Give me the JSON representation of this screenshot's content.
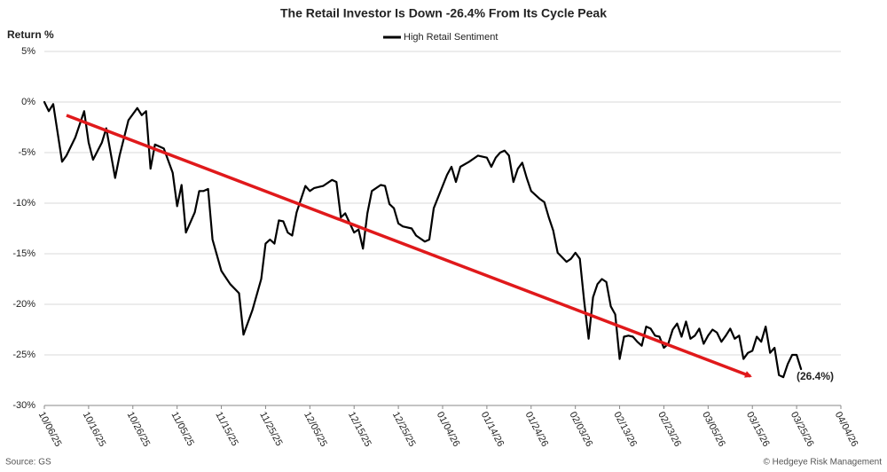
{
  "chart_data": {
    "type": "line",
    "title": "The Retail Investor Is Down -26.4% From Its Cycle Peak",
    "y_label": "Return %",
    "annotation": "(26.4%)",
    "source": "Source: GS",
    "credit": "© Hedgeye Risk Management",
    "x": [
      "10/06/25",
      "10/07/25",
      "10/08/25",
      "10/10/25",
      "10/11/25",
      "10/13/25",
      "10/15/25",
      "10/16/25",
      "10/17/25",
      "10/19/25",
      "10/20/25",
      "10/22/25",
      "10/23/25",
      "10/25/25",
      "10/27/25",
      "10/28/25",
      "10/29/25",
      "10/30/25",
      "10/31/25",
      "11/02/25",
      "11/04/25",
      "11/05/25",
      "11/06/25",
      "11/07/25",
      "11/09/25",
      "11/10/25",
      "11/11/25",
      "11/12/25",
      "11/13/25",
      "11/15/25",
      "11/17/25",
      "11/19/25",
      "11/20/25",
      "11/22/25",
      "11/24/25",
      "11/25/25",
      "11/26/25",
      "11/27/25",
      "11/28/25",
      "11/29/25",
      "11/30/25",
      "12/01/25",
      "12/02/25",
      "12/04/25",
      "12/05/25",
      "12/06/25",
      "12/08/25",
      "12/10/25",
      "12/11/25",
      "12/12/25",
      "12/13/25",
      "12/15/25",
      "12/16/25",
      "12/17/25",
      "12/18/25",
      "12/19/25",
      "12/21/25",
      "12/22/25",
      "12/23/25",
      "12/24/25",
      "12/25/25",
      "12/26/25",
      "12/28/25",
      "12/29/25",
      "12/31/25",
      "01/01/26",
      "01/02/26",
      "01/04/26",
      "01/05/26",
      "01/06/26",
      "01/07/26",
      "01/08/26",
      "01/10/26",
      "01/12/26",
      "01/14/26",
      "01/15/26",
      "01/16/26",
      "01/17/26",
      "01/18/26",
      "01/19/26",
      "01/20/26",
      "01/21/26",
      "01/22/26",
      "01/23/26",
      "01/24/26",
      "01/26/26",
      "01/27/26",
      "01/28/26",
      "01/29/26",
      "01/30/26",
      "02/01/26",
      "02/02/26",
      "02/03/26",
      "02/04/26",
      "02/05/26",
      "02/06/26",
      "02/07/26",
      "02/08/26",
      "02/09/26",
      "02/10/26",
      "02/11/26",
      "02/12/26",
      "02/13/26",
      "02/14/26",
      "02/15/26",
      "02/16/26",
      "02/17/26",
      "02/18/26",
      "02/19/26",
      "02/20/26",
      "02/21/26",
      "02/22/26",
      "02/23/26",
      "02/24/26",
      "02/25/26",
      "02/26/26",
      "02/27/26",
      "02/28/26",
      "03/01/26",
      "03/02/26",
      "03/03/26",
      "03/04/26",
      "03/05/26",
      "03/06/26",
      "03/07/26",
      "03/08/26",
      "03/09/26",
      "03/10/26",
      "03/11/26",
      "03/12/26",
      "03/13/26",
      "03/14/26",
      "03/15/26",
      "03/16/26",
      "03/17/26",
      "03/18/26",
      "03/19/26",
      "03/20/26",
      "03/21/26",
      "03/22/26",
      "03/23/26",
      "03/24/26",
      "03/25/26",
      "03/26/26"
    ],
    "series": [
      {
        "name": "High Retail Sentiment",
        "color": "#000000",
        "values": [
          0,
          -0.9,
          -0.2,
          -5.9,
          -5.3,
          -3.5,
          -0.9,
          -4,
          -5.7,
          -4,
          -2.6,
          -7.5,
          -5.3,
          -1.8,
          -0.6,
          -1.3,
          -0.9,
          -6.6,
          -4.2,
          -4.6,
          -7,
          -10.3,
          -8.2,
          -12.9,
          -10.9,
          -8.8,
          -8.8,
          -8.6,
          -13.6,
          -16.7,
          -18,
          -18.9,
          -23,
          -20.6,
          -17.5,
          -14,
          -13.6,
          -14,
          -11.7,
          -11.8,
          -12.9,
          -13.2,
          -10.9,
          -8.3,
          -8.8,
          -8.5,
          -8.3,
          -7.7,
          -7.9,
          -11.4,
          -11,
          -12.9,
          -12.6,
          -14.5,
          -11,
          -8.8,
          -8.2,
          -8.3,
          -10.1,
          -10.5,
          -12,
          -12.3,
          -12.5,
          -13.2,
          -13.8,
          -13.6,
          -10.5,
          -8.3,
          -7.2,
          -6.4,
          -7.9,
          -6.4,
          -5.9,
          -5.3,
          -5.5,
          -6.4,
          -5.5,
          -5,
          -4.8,
          -5.3,
          -7.9,
          -6.6,
          -6,
          -7.5,
          -8.8,
          -9.6,
          -9.9,
          -11.4,
          -12.7,
          -14.9,
          -15.8,
          -15.5,
          -14.9,
          -15.5,
          -19.7,
          -23.4,
          -19.3,
          -18,
          -17.5,
          -17.8,
          -20.2,
          -21,
          -25.4,
          -23.2,
          -23.1,
          -23.2,
          -23.7,
          -24.1,
          -22.2,
          -22.4,
          -23.1,
          -23.2,
          -24.3,
          -23.9,
          -22.5,
          -21.9,
          -23.2,
          -21.7,
          -23.4,
          -23.1,
          -22.4,
          -23.9,
          -23.1,
          -22.5,
          -22.8,
          -23.7,
          -23.1,
          -22.4,
          -23.4,
          -23.1,
          -25.4,
          -24.8,
          -24.6,
          -23.2,
          -23.7,
          -22.2,
          -24.8,
          -24.3,
          -27,
          -27.2,
          -25.9,
          -25,
          -25,
          -26.4
        ]
      }
    ],
    "xlim": [
      "10/06/25",
      "04/04/26"
    ],
    "xticks": [
      "10/06/25",
      "10/16/25",
      "10/26/25",
      "11/05/25",
      "11/15/25",
      "11/25/25",
      "12/05/25",
      "12/15/25",
      "12/25/25",
      "01/04/26",
      "01/14/26",
      "01/24/26",
      "02/03/26",
      "02/13/26",
      "02/23/26",
      "03/05/26",
      "03/15/26",
      "03/25/26",
      "04/04/26"
    ],
    "ylim": [
      -30,
      5
    ],
    "yticks": [
      {
        "value": 5,
        "label": "5%"
      },
      {
        "value": 0,
        "label": "0%"
      },
      {
        "value": -5,
        "label": "-5%"
      },
      {
        "value": -10,
        "label": "-10%"
      },
      {
        "value": -15,
        "label": "-15%"
      },
      {
        "value": -20,
        "label": "-20%"
      },
      {
        "value": -25,
        "label": "-25%"
      },
      {
        "value": -30,
        "label": "-30%"
      }
    ],
    "grid": true,
    "legend": "top"
  }
}
